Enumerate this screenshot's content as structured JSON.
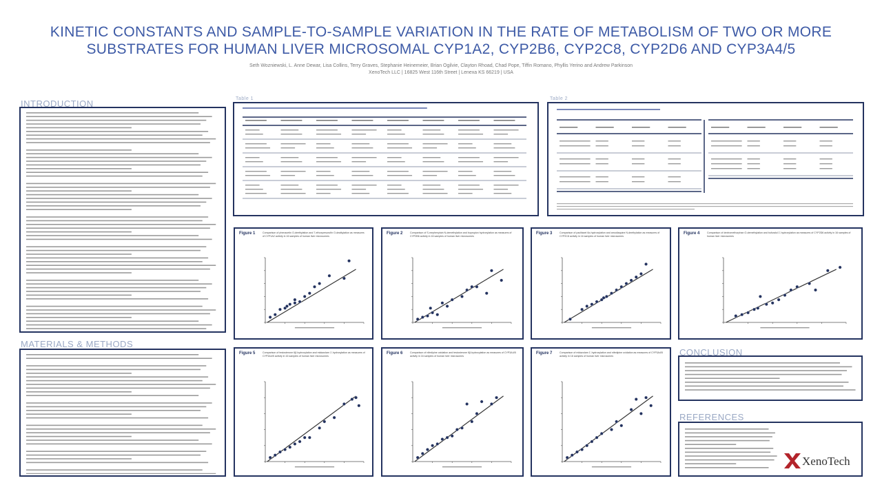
{
  "header": {
    "title_line1": "KINETIC CONSTANTS AND SAMPLE-TO-SAMPLE VARIATION IN THE RATE OF METABOLISM OF TWO OR MORE",
    "title_line2": "SUBSTRATES FOR HUMAN LIVER MICROSOMAL CYP1A2, CYP2B6, CYP2C8, CYP2D6 AND CYP3A4/5",
    "authors": "Seth Wozniewski, L. Anne Dewar, Lisa Collins, Terry Graves, Stephanie Heinemeier, Brian Ogilvie, Clayton Rhoad, Chad Pope, Tiffin Romano, Phyllis Yerino and Andrew Parkinson",
    "affiliation": "XenoTech LLC  |  16825 West 116th Street  |  Lenexa KS 66219  |  USA"
  },
  "sections": {
    "introduction": "INTRODUCTION",
    "materials": "MATERIALS & METHODS",
    "conclusion": "CONCLUSION",
    "references": "REFERENCES",
    "table1": "Table 1",
    "table2": "Table 2"
  },
  "figures": [
    {
      "label": "Figure 1",
      "caption": "Comparison of phenacetin O-deethylation and 7-ethoxyresorufin O-dealkylation as measures of CYP1A2 activity in 16 samples of human liver microsomes"
    },
    {
      "label": "Figure 2",
      "caption": "Comparison of S-mephenytoin N-demethylation and bupropion hydroxylation as measures of CYP2B6 activity in 16 samples of human liver microsomes"
    },
    {
      "label": "Figure 3",
      "caption": "Comparison of paclitaxel 6α-hydroxylation and amodiaquine N-deethylation as measures of CYP2C8 activity in 16 samples of human liver microsomes"
    },
    {
      "label": "Figure 4",
      "caption": "Comparison of dextromethorphan O-demethylation and bufuralol 1'-hydroxylation as measures of CYP2D6 activity in 16 samples of human liver microsomes"
    },
    {
      "label": "Figure 5",
      "caption": "Comparison of testosterone 6β-hydroxylation and midazolam 1'-hydroxylation as measures of CYP3A4/5 activity in 16 samples of human liver microsomes"
    },
    {
      "label": "Figure 6",
      "caption": "Comparison of nifedipine oxidation and testosterone 6β-hydroxylation as measures of CYP3A4/5 activity in 16 samples of human liver microsomes"
    },
    {
      "label": "Figure 7",
      "caption": "Comparison of midazolam 1'-hydroxylation and nifedipine oxidation as measures of CYP3A4/5 activity in 16 samples of human liver microsomes"
    }
  ],
  "logo": {
    "text": "XenoTech"
  },
  "colors": {
    "accent": "#23325f",
    "title": "#3d5aa6",
    "section": "#9aa8c4"
  }
}
